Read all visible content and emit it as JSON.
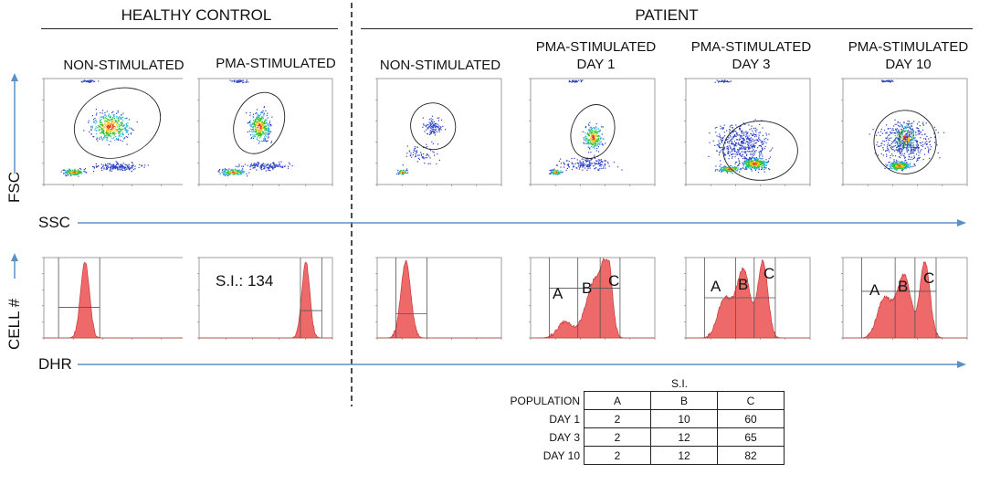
{
  "groups": {
    "healthy": "HEALTHY CONTROL",
    "patient": "PATIENT"
  },
  "columns": [
    {
      "id": "hc-ns",
      "line1": "NON-STIMULATED",
      "line2": ""
    },
    {
      "id": "hc-pma",
      "line1": "PMA-STIMULATED",
      "line2": ""
    },
    {
      "id": "p-ns",
      "line1": "NON-STIMULATED",
      "line2": ""
    },
    {
      "id": "p-d1",
      "line1": "PMA-STIMULATED",
      "line2": "DAY 1"
    },
    {
      "id": "p-d3",
      "line1": "PMA-STIMULATED",
      "line2": "DAY 3"
    },
    {
      "id": "p-d10",
      "line1": "PMA-STIMULATED",
      "line2": "DAY 10"
    }
  ],
  "axes": {
    "fsc": "FSC",
    "ssc": "SSC",
    "cell": "CELL #",
    "dhr": "DHR"
  },
  "hc_si_text": "S.I.: 134",
  "population_letters": [
    "A",
    "B",
    "C"
  ],
  "table": {
    "title": "S.I.",
    "header_label": "POPULATION",
    "columns": [
      "A",
      "B",
      "C"
    ],
    "rows": [
      {
        "label": "DAY 1",
        "values": [
          "2",
          "10",
          "60"
        ]
      },
      {
        "label": "DAY 3",
        "values": [
          "2",
          "12",
          "65"
        ]
      },
      {
        "label": "DAY 10",
        "values": [
          "2",
          "12",
          "82"
        ]
      }
    ]
  },
  "colors": {
    "arrow": "#5b8fc7",
    "histogram_fill": "#ee6a6a",
    "histogram_stroke": "#c23a3a",
    "dots": "#2a3fc2"
  }
}
